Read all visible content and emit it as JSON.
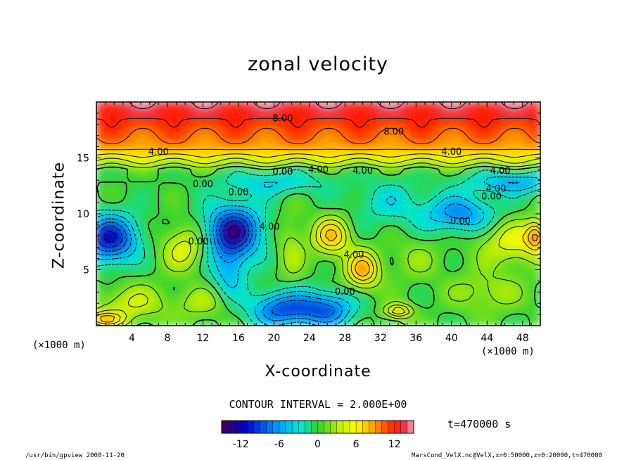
{
  "chart_data": {
    "type": "heatmap",
    "title": "zonal velocity",
    "xlabel": "X-coordinate",
    "ylabel": "Z-coordinate",
    "x_unit": "(×1000 m)",
    "y_unit": "(×1000 m)",
    "xlim": [
      0,
      50
    ],
    "ylim": [
      0,
      20
    ],
    "x_ticks": [
      4,
      8,
      12,
      16,
      20,
      24,
      28,
      32,
      36,
      40,
      44,
      48
    ],
    "y_ticks": [
      5,
      10,
      15
    ],
    "contour_interval_text": "CONTOUR INTERVAL = 2.000E+00",
    "contour_labels": [
      "8.00",
      "8.00",
      "4.00",
      "4.00",
      "4.00",
      "4.00",
      "0.00",
      "0.00",
      "0.00",
      "0.00",
      "4.00",
      "0.00",
      "4.00",
      "4.00",
      "0.00",
      "4.00",
      "0.00"
    ],
    "colorbar": {
      "min": -15,
      "max": 15,
      "ticks": [
        -12,
        -6,
        0,
        6,
        12
      ]
    },
    "time_label": "t=470000 s"
  },
  "footer": {
    "left": "/usr/bin/gpview  2008-11-20",
    "right": "MarsCond_VelX.nc@VelX,x=0:50000,z=0:20000,t=470000"
  },
  "colors": {
    "min": "#4b0055",
    "low": "#0000c8",
    "mid_low": "#00c8ff",
    "zero": "#32d232",
    "mid_high": "#ffff00",
    "high": "#ff0000",
    "max": "#ffb4c8"
  }
}
